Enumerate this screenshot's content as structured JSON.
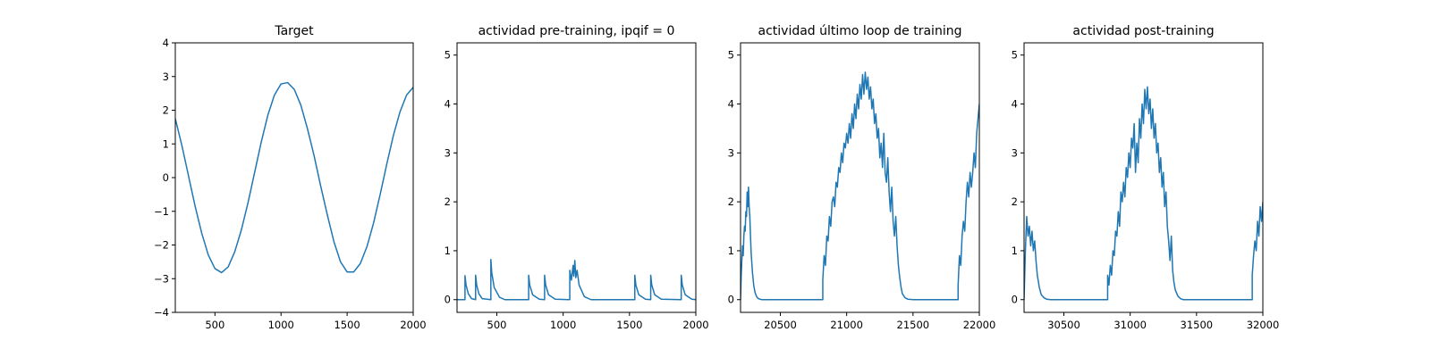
{
  "chart_data": [
    {
      "type": "line",
      "title": "Target",
      "xlim": [
        200,
        2000
      ],
      "ylim": [
        -4,
        4
      ],
      "xticks": [
        500,
        1000,
        1500,
        2000
      ],
      "yticks": [
        -4,
        -3,
        -2,
        -1,
        0,
        1,
        2,
        3,
        4
      ],
      "series": [
        {
          "color": "#1f77b4",
          "x": [
            200,
            250,
            300,
            350,
            400,
            450,
            500,
            550,
            600,
            650,
            700,
            750,
            800,
            850,
            900,
            950,
            1000,
            1050,
            1100,
            1150,
            1200,
            1250,
            1300,
            1350,
            1400,
            1450,
            1500,
            1550,
            1600,
            1650,
            1700,
            1750,
            1800,
            1850,
            1900,
            1950,
            2000
          ],
          "y": [
            1.75,
            0.95,
            0.05,
            -0.85,
            -1.65,
            -2.3,
            -2.7,
            -2.82,
            -2.65,
            -2.2,
            -1.55,
            -0.75,
            0.15,
            1.05,
            1.85,
            2.45,
            2.78,
            2.82,
            2.62,
            2.15,
            1.45,
            0.65,
            -0.25,
            -1.1,
            -1.9,
            -2.5,
            -2.8,
            -2.8,
            -2.55,
            -2.05,
            -1.35,
            -0.5,
            0.4,
            1.25,
            1.95,
            2.45,
            2.68
          ]
        }
      ]
    },
    {
      "type": "line",
      "title": "actividad pre-training, ipqif = 0",
      "xlim": [
        200,
        2000
      ],
      "ylim": [
        -0.26,
        5.25
      ],
      "xticks": [
        500,
        1000,
        1500,
        2000
      ],
      "yticks": [
        0,
        1,
        2,
        3,
        4,
        5
      ],
      "series": [
        {
          "color": "#1f77b4",
          "x": [
            200,
            260,
            260,
            268,
            285,
            310,
            340,
            340,
            348,
            365,
            390,
            455,
            455,
            462,
            480,
            520,
            560,
            740,
            740,
            748,
            770,
            820,
            860,
            860,
            868,
            890,
            940,
            1050,
            1050,
            1062,
            1075,
            1080,
            1088,
            1095,
            1105,
            1120,
            1160,
            1210,
            1540,
            1540,
            1548,
            1570,
            1620,
            1660,
            1660,
            1668,
            1690,
            1740,
            1890,
            1890,
            1898,
            1920,
            1970,
            2000
          ],
          "y": [
            0,
            0,
            0.49,
            0.3,
            0.12,
            0.02,
            0,
            0.5,
            0.3,
            0.12,
            0.02,
            0,
            0.82,
            0.55,
            0.25,
            0.05,
            0,
            0,
            0.5,
            0.3,
            0.1,
            0.01,
            0,
            0.5,
            0.3,
            0.1,
            0.01,
            0,
            0.6,
            0.4,
            0.7,
            0.48,
            0.8,
            0.45,
            0.6,
            0.3,
            0.06,
            0,
            0,
            0.5,
            0.3,
            0.1,
            0.01,
            0,
            0.5,
            0.3,
            0.1,
            0.01,
            0,
            0.5,
            0.3,
            0.1,
            0.01,
            0
          ]
        }
      ]
    },
    {
      "type": "line",
      "title": "actividad último loop de training",
      "xlim": [
        20200,
        22000
      ],
      "ylim": [
        -0.26,
        5.25
      ],
      "xticks": [
        20500,
        21000,
        21500,
        22000
      ],
      "yticks": [
        0,
        1,
        2,
        3,
        4,
        5
      ],
      "series": [
        {
          "color": "#1f77b4",
          "x": [
            20200,
            20205,
            20210,
            20215,
            20220,
            20225,
            20230,
            20235,
            20240,
            20245,
            20250,
            20255,
            20260,
            20265,
            20270,
            20275,
            20280,
            20290,
            20300,
            20310,
            20320,
            20330,
            20345,
            20360,
            20380,
            20400,
            20450,
            20820,
            20820,
            20830,
            20840,
            20850,
            20860,
            20870,
            20880,
            20890,
            20900,
            20910,
            20920,
            20930,
            20940,
            20950,
            20960,
            20970,
            20980,
            20990,
            21000,
            21010,
            21020,
            21030,
            21040,
            21050,
            21060,
            21070,
            21080,
            21090,
            21100,
            21110,
            21120,
            21130,
            21140,
            21150,
            21160,
            21170,
            21180,
            21190,
            21200,
            21210,
            21220,
            21230,
            21240,
            21250,
            21260,
            21270,
            21280,
            21290,
            21300,
            21310,
            21320,
            21330,
            21340,
            21350,
            21360,
            21370,
            21380,
            21390,
            21400,
            21410,
            21420,
            21440,
            21460,
            21500,
            21550,
            21840,
            21840,
            21850,
            21860,
            21870,
            21880,
            21890,
            21900,
            21910,
            21920,
            21930,
            21940,
            21950,
            21960,
            21970,
            21980,
            21990,
            22000
          ],
          "y": [
            0,
            0.5,
            0.8,
            1.1,
            0.9,
            1.3,
            1.5,
            1.4,
            1.8,
            1.7,
            2.2,
            1.9,
            2.3,
            1.9,
            1.7,
            1.3,
            0.95,
            0.55,
            0.28,
            0.14,
            0.07,
            0.03,
            0.01,
            0,
            0,
            0,
            0,
            0,
            0.4,
            0.9,
            0.7,
            1.3,
            1.2,
            1.7,
            1.5,
            2.0,
            2.1,
            1.9,
            2.4,
            2.3,
            2.7,
            2.6,
            3.0,
            2.8,
            3.2,
            3.1,
            3.4,
            3.2,
            3.6,
            3.3,
            3.8,
            3.5,
            4.0,
            3.7,
            4.2,
            3.9,
            4.4,
            4.1,
            4.6,
            4.2,
            4.65,
            4.3,
            4.55,
            4.1,
            4.35,
            3.9,
            4.1,
            3.6,
            3.8,
            3.3,
            3.5,
            2.9,
            3.2,
            2.7,
            3.4,
            2.6,
            2.4,
            2.9,
            2.2,
            1.8,
            2.3,
            1.6,
            1.3,
            1.7,
            1.1,
            0.7,
            0.45,
            0.25,
            0.12,
            0.04,
            0.01,
            0,
            0,
            0,
            0.3,
            0.9,
            0.7,
            1.3,
            1.6,
            1.4,
            2.0,
            2.4,
            2.1,
            2.6,
            2.3,
            2.6,
            3.0,
            2.7,
            3.4,
            3.7,
            4.0
          ]
        }
      ]
    },
    {
      "type": "line",
      "title": "actividad post-training",
      "xlim": [
        30200,
        32000
      ],
      "ylim": [
        -0.26,
        5.25
      ],
      "xticks": [
        30500,
        31000,
        31500,
        32000
      ],
      "yticks": [
        0,
        1,
        2,
        3,
        4,
        5
      ],
      "series": [
        {
          "color": "#1f77b4",
          "x": [
            30200,
            30210,
            30220,
            30230,
            30240,
            30250,
            30260,
            30270,
            30280,
            30290,
            30300,
            30315,
            30330,
            30350,
            30370,
            30400,
            30450,
            30830,
            30830,
            30840,
            30850,
            30860,
            30870,
            30880,
            30890,
            30900,
            30910,
            30920,
            30930,
            30940,
            30950,
            30960,
            30970,
            30980,
            30990,
            31000,
            31010,
            31020,
            31030,
            31040,
            31050,
            31060,
            31070,
            31080,
            31090,
            31100,
            31110,
            31120,
            31130,
            31140,
            31150,
            31160,
            31170,
            31180,
            31190,
            31200,
            31210,
            31220,
            31230,
            31240,
            31250,
            31260,
            31270,
            31280,
            31290,
            31300,
            31310,
            31320,
            31330,
            31340,
            31360,
            31380,
            31400,
            31450,
            31920,
            31920,
            31930,
            31940,
            31950,
            31960,
            31970,
            31980,
            31990,
            32000
          ],
          "y": [
            0,
            1.0,
            1.7,
            1.3,
            1.5,
            1.1,
            1.4,
            1.0,
            1.2,
            0.8,
            0.5,
            0.25,
            0.1,
            0.04,
            0.01,
            0,
            0,
            0,
            0.5,
            0.3,
            0.7,
            0.5,
            1.0,
            0.9,
            1.4,
            1.3,
            1.8,
            1.5,
            2.2,
            2.0,
            2.4,
            2.1,
            2.7,
            2.5,
            3.0,
            2.7,
            3.3,
            3.1,
            3.6,
            2.6,
            3.2,
            2.8,
            3.7,
            3.3,
            4.0,
            3.6,
            4.3,
            3.9,
            4.35,
            3.8,
            4.1,
            3.5,
            3.9,
            3.3,
            3.6,
            3.0,
            3.2,
            2.6,
            2.9,
            2.3,
            2.6,
            1.9,
            2.2,
            1.5,
            1.2,
            0.8,
            1.3,
            0.6,
            0.35,
            0.2,
            0.07,
            0.02,
            0,
            0,
            0,
            0.5,
            0.9,
            1.2,
            1.0,
            1.6,
            1.3,
            1.9,
            1.6,
            2.0
          ]
        }
      ]
    }
  ]
}
